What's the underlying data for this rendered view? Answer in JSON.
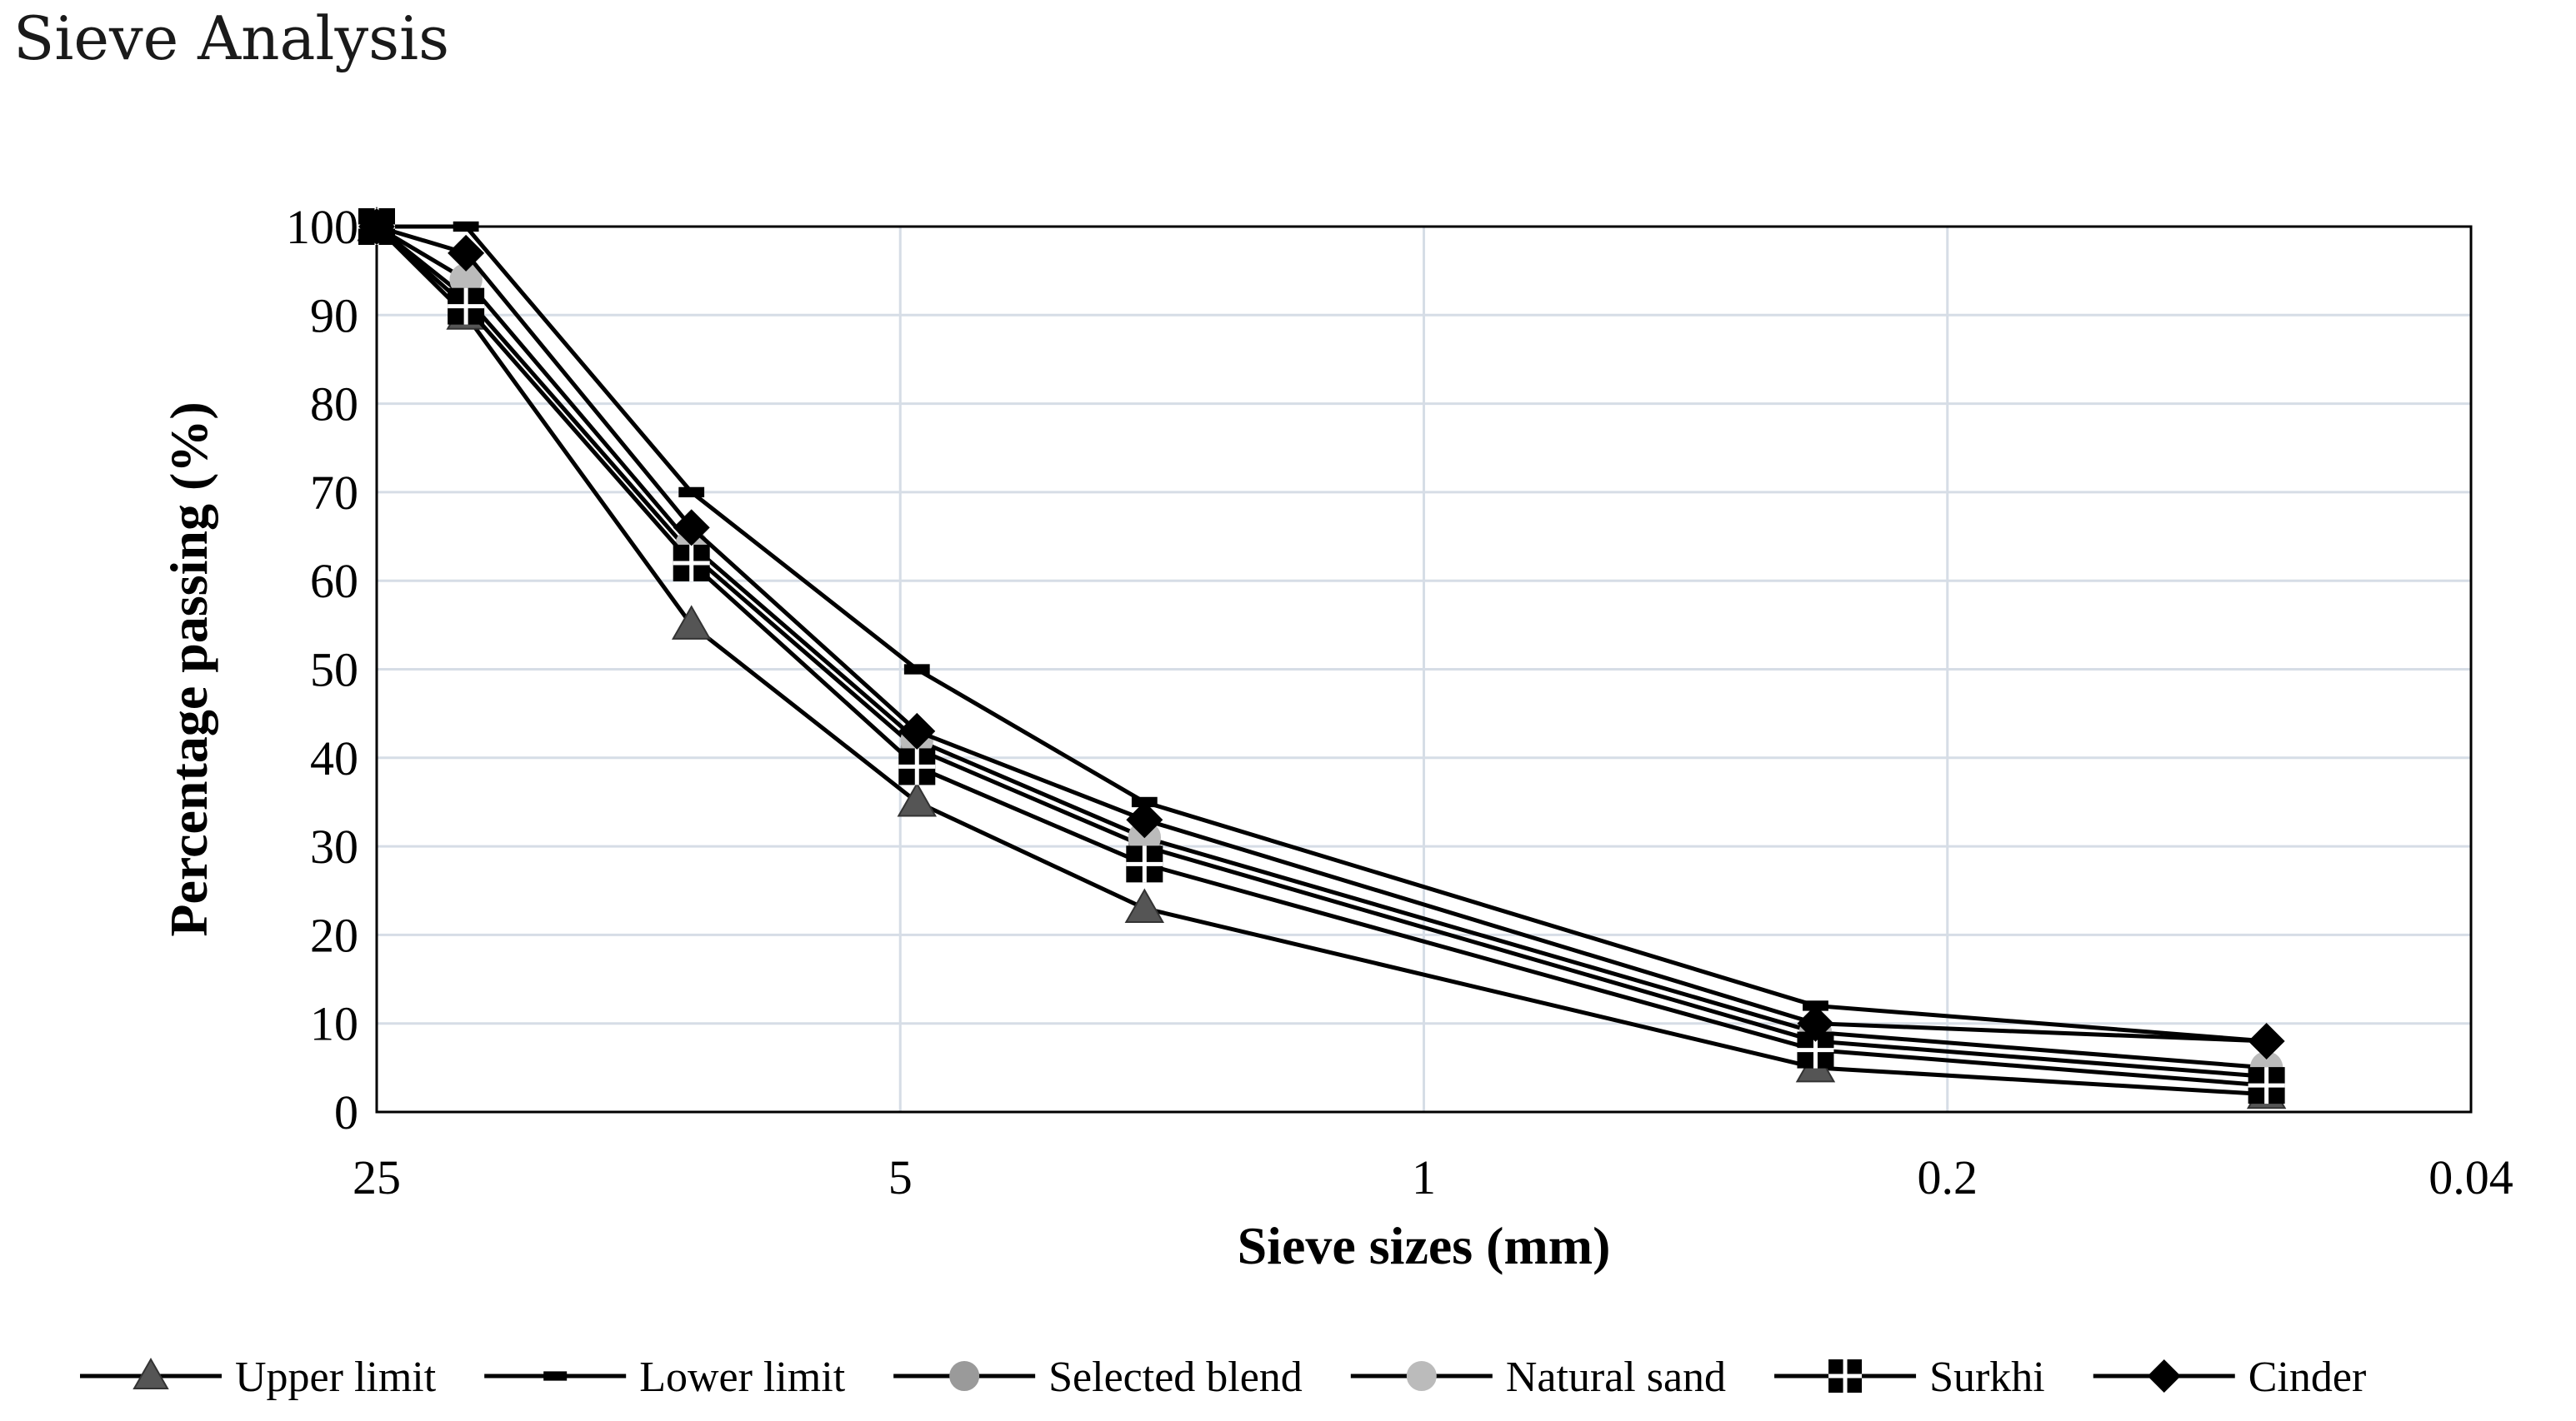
{
  "title": "Sieve Analysis",
  "chart_data": {
    "type": "line",
    "title": "Sieve Analysis",
    "xlabel": "Sieve sizes (mm)",
    "ylabel": "Percentage passing (%)",
    "x_scale": "log-reversed",
    "xlim": [
      25,
      0.04
    ],
    "ylim": [
      0,
      100
    ],
    "x_ticks": [
      25,
      5,
      1,
      0.2,
      0.04
    ],
    "x_tick_labels": [
      "25",
      "5",
      "1",
      "0.2",
      "0.04"
    ],
    "y_ticks": [
      0,
      10,
      20,
      30,
      40,
      50,
      60,
      70,
      80,
      90,
      100
    ],
    "y_tick_labels": [
      "0",
      "10",
      "20",
      "30",
      "40",
      "50",
      "60",
      "70",
      "80",
      "90",
      "100"
    ],
    "grid": true,
    "legend_position": "bottom",
    "x": [
      25,
      19,
      9.5,
      4.75,
      2.36,
      0.3,
      0.075
    ],
    "series": [
      {
        "name": "Upper limit",
        "marker": "triangle",
        "color": "#000000",
        "marker_color": "#555555",
        "values": [
          100,
          90,
          55,
          35,
          23,
          5,
          2
        ]
      },
      {
        "name": "Lower limit",
        "marker": "dash",
        "color": "#000000",
        "marker_color": "#000000",
        "values": [
          100,
          100,
          70,
          50,
          35,
          12,
          8
        ]
      },
      {
        "name": "Selected blend",
        "marker": "circle",
        "color": "#000000",
        "marker_color": "#9a9a9a",
        "values": [
          100,
          92,
          63,
          41,
          30,
          8,
          4
        ]
      },
      {
        "name": "Natural sand",
        "marker": "circle",
        "color": "#000000",
        "marker_color": "#bbbbbb",
        "values": [
          100,
          94,
          64,
          42,
          31,
          9,
          5
        ]
      },
      {
        "name": "Surkhi",
        "marker": "cross-square",
        "color": "#000000",
        "marker_color": "#000000",
        "values": [
          100,
          91,
          62,
          39,
          28,
          7,
          3
        ]
      },
      {
        "name": "Cinder",
        "marker": "diamond",
        "color": "#000000",
        "marker_color": "#000000",
        "values": [
          100,
          97,
          66,
          43,
          33,
          10,
          8
        ]
      }
    ]
  }
}
